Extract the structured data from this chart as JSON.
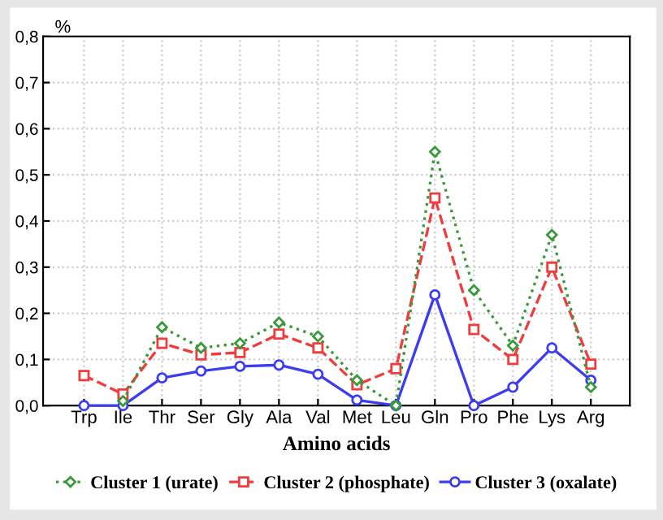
{
  "chart_data": {
    "type": "line",
    "ylabel": "%",
    "xlabel": "Amino acids",
    "categories": [
      "Trp",
      "Ile",
      "Thr",
      "Ser",
      "Gly",
      "Ala",
      "Val",
      "Met",
      "Leu",
      "Gln",
      "Pro",
      "Phe",
      "Lys",
      "Arg"
    ],
    "series": [
      {
        "name": "Cluster 1 (urate)",
        "color": "#3a9a3a",
        "marker": "diamond",
        "line_style": "dotted",
        "values": [
          null,
          0.01,
          0.17,
          0.125,
          0.135,
          0.18,
          0.15,
          0.055,
          0.0,
          0.55,
          0.25,
          0.13,
          0.37,
          0.04
        ]
      },
      {
        "name": "Cluster 2 (phosphate)",
        "color": "#f03c3c",
        "marker": "square",
        "line_style": "dashed",
        "values": [
          0.065,
          0.025,
          0.135,
          0.11,
          0.115,
          0.155,
          0.125,
          0.045,
          0.08,
          0.45,
          0.165,
          0.1,
          0.3,
          0.09
        ]
      },
      {
        "name": "Cluster 3 (oxalate)",
        "color": "#3c3cf0",
        "marker": "circle",
        "line_style": "solid",
        "values": [
          0.0,
          0.0,
          0.06,
          0.075,
          0.085,
          0.088,
          0.068,
          0.012,
          0.0,
          0.24,
          0.0,
          0.04,
          0.125,
          0.055
        ]
      }
    ],
    "ylim": [
      0,
      0.8
    ],
    "yticks": [
      {
        "value": 0,
        "label": "0,0"
      },
      {
        "value": 0.1,
        "label": "0,1"
      },
      {
        "value": 0.2,
        "label": "0,2"
      },
      {
        "value": 0.3,
        "label": "0,3"
      },
      {
        "value": 0.4,
        "label": "0,4"
      },
      {
        "value": 0.5,
        "label": "0,5"
      },
      {
        "value": 0.6,
        "label": "0,6"
      },
      {
        "value": 0.7,
        "label": "0,7"
      },
      {
        "value": 0.8,
        "label": "0,8"
      }
    ],
    "grid": true,
    "legend": "bottom"
  }
}
